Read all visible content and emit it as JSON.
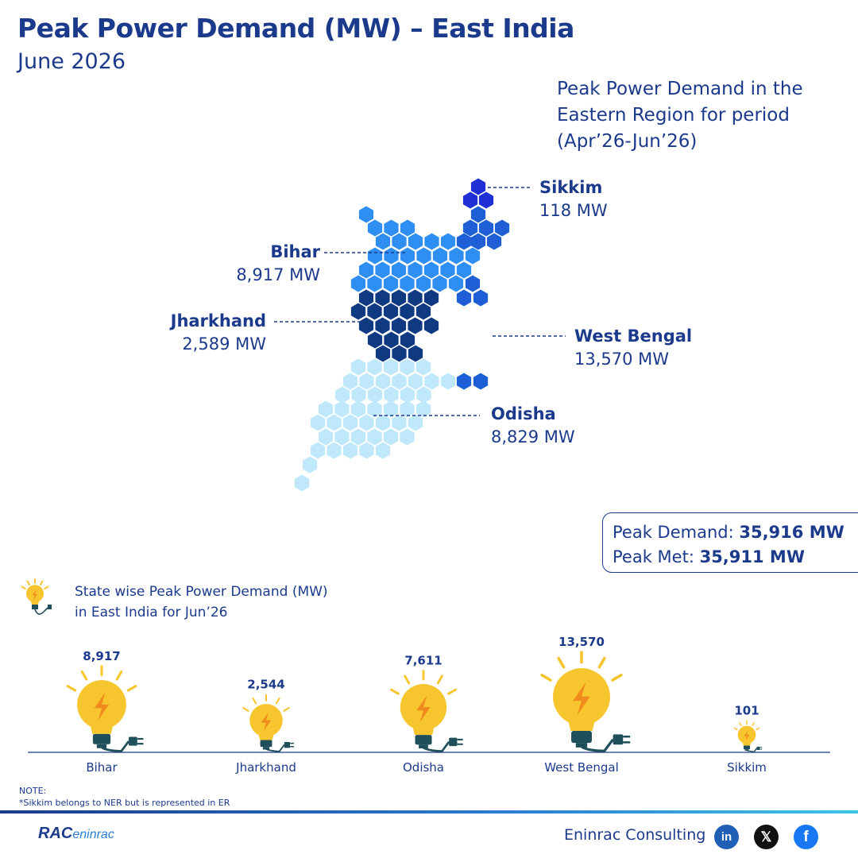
{
  "header": {
    "title": "Peak Power Demand (MW) – East India",
    "subtitle": "June 2026"
  },
  "map_note": "Peak Power Demand in the Eastern Region for period (Apr’26-Jun’26)",
  "map_labels": {
    "sikkim": {
      "name": "Sikkim",
      "value": "118 MW"
    },
    "bihar": {
      "name": "Bihar",
      "value": "8,917 MW"
    },
    "jharkhand": {
      "name": "Jharkhand",
      "value": "2,589 MW"
    },
    "west_bengal": {
      "name": "West Bengal",
      "value": "13,570 MW"
    },
    "odisha": {
      "name": "Odisha",
      "value": "8,829 MW"
    }
  },
  "peak_box": {
    "demand_label": "Peak Demand: ",
    "demand_value": "35,916 MW",
    "met_label": "Peak Met: ",
    "met_value": "35,911 MW"
  },
  "legend_text_line1": "State wise Peak Power Demand (MW)",
  "legend_text_line2": "in East India for Jun’26",
  "chart_data": {
    "type": "bar",
    "title": "State wise Peak Power Demand (MW) in East India for Jun’26",
    "categories": [
      "Bihar",
      "Jharkhand",
      "Odisha",
      "West Bengal",
      "Sikkim"
    ],
    "values": [
      8917,
      2544,
      7611,
      13570,
      101
    ],
    "value_labels": [
      "8,917",
      "2,544",
      "7,611",
      "13,570",
      "101"
    ],
    "marker": "light bulb sized by value"
  },
  "map_data": {
    "type": "hex map",
    "states": [
      "Sikkim",
      "Bihar",
      "Jharkhand",
      "West Bengal",
      "Odisha"
    ],
    "values_mw": [
      118,
      8917,
      2589,
      13570,
      8829
    ]
  },
  "colors": {
    "title": "#1b3a8c",
    "sikkim": "#1f2fd6",
    "bihar": "#2f8ef2",
    "jharkhand": "#0f3a82",
    "west_bengal": "#1f5fd6",
    "odisha": "#bfe8fb",
    "bulb": "#f7c52e"
  },
  "note": {
    "heading": "NOTE:",
    "text": "*Sikkim belongs to NER but is represented in ER"
  },
  "footer": {
    "logo_main": "RAC",
    "logo_sub": "eninrac",
    "company": "Eninrac Consulting",
    "icons": [
      "linkedin-icon",
      "x-icon",
      "facebook-icon"
    ]
  }
}
